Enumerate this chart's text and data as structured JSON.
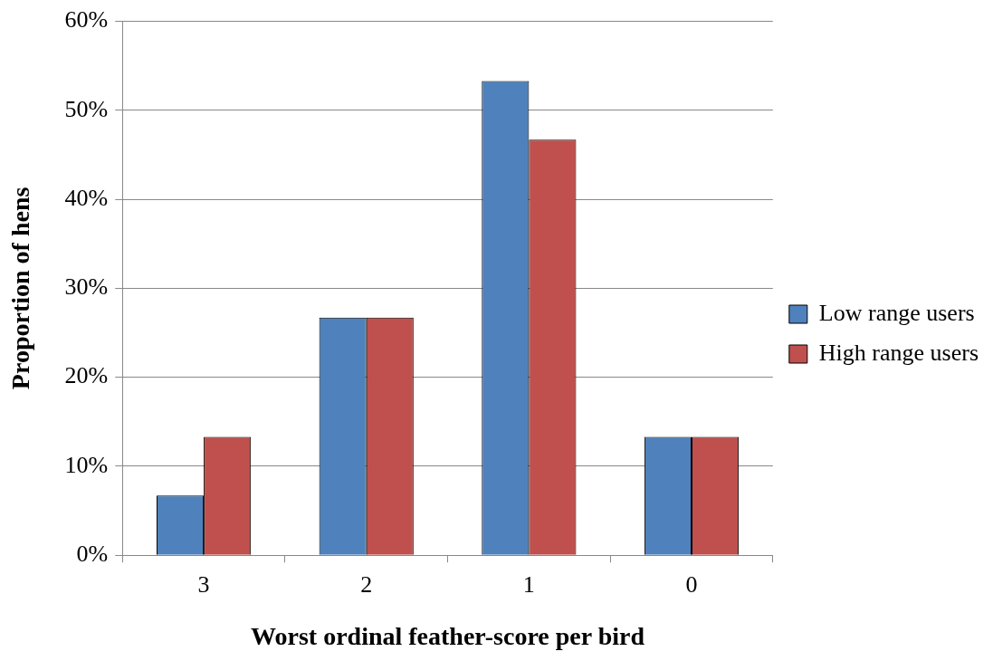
{
  "chart_data": {
    "type": "bar",
    "xlabel": "Worst ordinal feather-score per bird",
    "ylabel": "Proportion of hens",
    "categories": [
      "3",
      "2",
      "1",
      "0"
    ],
    "series": [
      {
        "name": "Low range users",
        "color": "#4f81bd",
        "values": [
          6.7,
          26.7,
          53.3,
          13.3
        ]
      },
      {
        "name": "High range users",
        "color": "#c0504d",
        "values": [
          13.3,
          26.7,
          46.7,
          13.3
        ]
      }
    ],
    "ylim": [
      0,
      60
    ],
    "yticks": [
      {
        "value": 0,
        "label": "0%"
      },
      {
        "value": 10,
        "label": "10%"
      },
      {
        "value": 20,
        "label": "20%"
      },
      {
        "value": 30,
        "label": "30%"
      },
      {
        "value": 40,
        "label": "40%"
      },
      {
        "value": 50,
        "label": "50%"
      },
      {
        "value": 60,
        "label": "60%"
      }
    ],
    "grid": "y",
    "legend": "right"
  }
}
